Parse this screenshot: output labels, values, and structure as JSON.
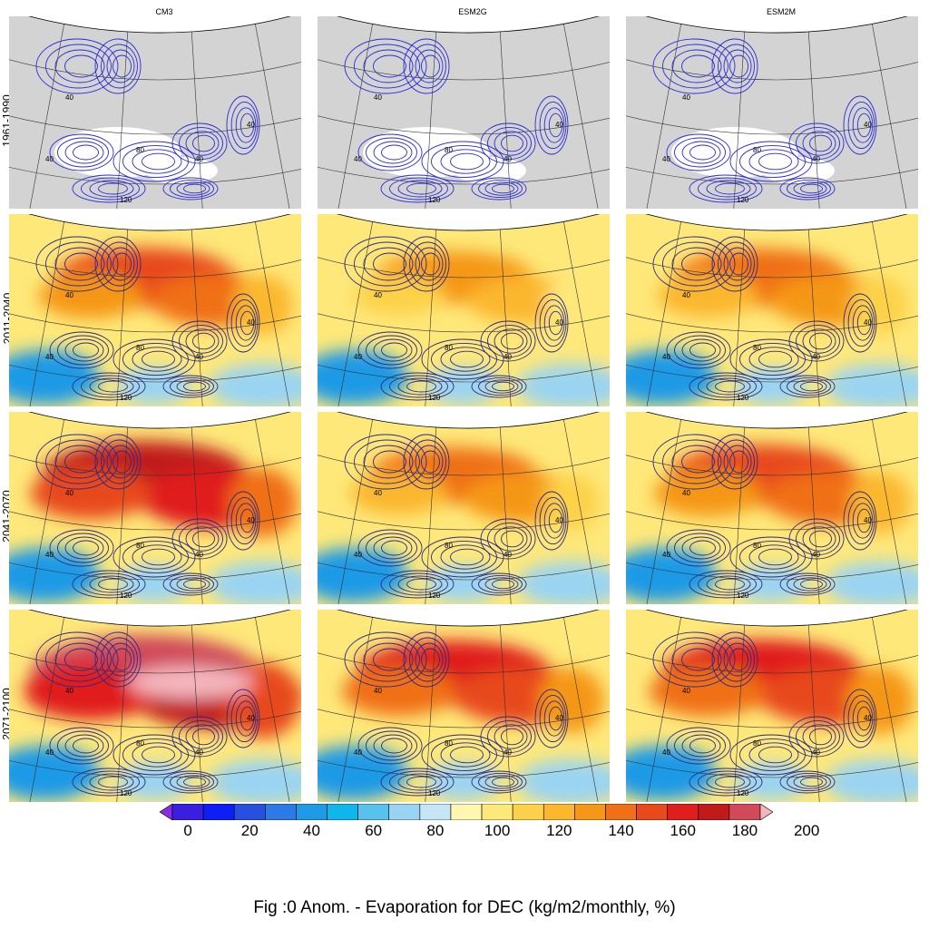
{
  "figure": {
    "columns": [
      "CM3",
      "ESM2G",
      "ESM2M"
    ],
    "rows": [
      "1961-1990",
      "2011-2040",
      "2041-2070",
      "2071-2100"
    ],
    "caption": "Fig :0  Anom.  - Evaporation for DEC (kg/m2/monthly, %)",
    "base_map_color": "#d3d3d3",
    "contour_color": "#2b2bd9",
    "contour_labels": [
      "40",
      "80",
      "120"
    ]
  },
  "colorbar": {
    "tick_labels": [
      "0",
      "20",
      "40",
      "60",
      "80",
      "100",
      "120",
      "140",
      "160",
      "180",
      "200"
    ],
    "colors": [
      "#8a2be2",
      "#3a1fe0",
      "#0d1ff5",
      "#2850e0",
      "#2c7ae8",
      "#1e9ae6",
      "#10b5ec",
      "#58c2ee",
      "#9ad4f2",
      "#c6e6f8",
      "#fff6b0",
      "#fee87a",
      "#fdd24a",
      "#fbb72e",
      "#f59718",
      "#f07018",
      "#e84a1c",
      "#e01e1e",
      "#c01a1a",
      "#d04a5a",
      "#f5b5bd"
    ]
  },
  "panels": [
    {
      "row": 0,
      "col": 0,
      "intensity": 0.0
    },
    {
      "row": 0,
      "col": 1,
      "intensity": 0.0
    },
    {
      "row": 0,
      "col": 2,
      "intensity": 0.0
    },
    {
      "row": 1,
      "col": 0,
      "intensity": 0.45
    },
    {
      "row": 1,
      "col": 1,
      "intensity": 0.25
    },
    {
      "row": 1,
      "col": 2,
      "intensity": 0.4
    },
    {
      "row": 2,
      "col": 0,
      "intensity": 0.7
    },
    {
      "row": 2,
      "col": 1,
      "intensity": 0.35
    },
    {
      "row": 2,
      "col": 2,
      "intensity": 0.5
    },
    {
      "row": 3,
      "col": 0,
      "intensity": 0.9
    },
    {
      "row": 3,
      "col": 1,
      "intensity": 0.6
    },
    {
      "row": 3,
      "col": 2,
      "intensity": 0.65
    }
  ]
}
